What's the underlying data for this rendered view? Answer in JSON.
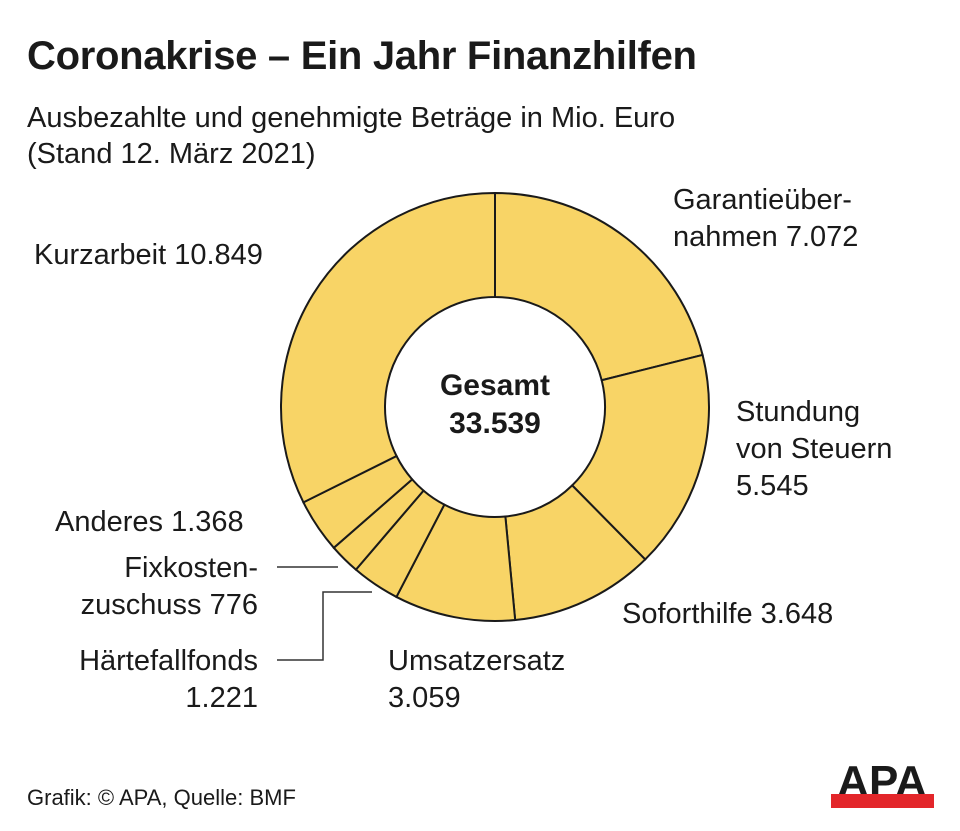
{
  "title": "Coronakrise – Ein Jahr Finanzhilfen",
  "subtitle_line1": "Ausbezahlte und genehmigte Beträge in Mio. Euro",
  "subtitle_line2": "(Stand 12. März 2021)",
  "footer": "Grafik: © APA, Quelle: BMF",
  "logo_text": "APA",
  "colors": {
    "slice": "#F8D466",
    "outline": "#1a1a1a",
    "logo_red": "#E3262A"
  },
  "chart_data": {
    "type": "pie",
    "variant": "donut",
    "unit": "Mio. Euro",
    "center_label": "Gesamt",
    "center_value": "33.539",
    "slices": [
      {
        "label_lines": [
          "Garantieüber-",
          "nahmen 7.072"
        ],
        "value": 7072
      },
      {
        "label_lines": [
          "Stundung",
          "von Steuern",
          "5.545"
        ],
        "value": 5545
      },
      {
        "label_lines": [
          "Soforthilfe 3.648"
        ],
        "value": 3648
      },
      {
        "label_lines": [
          "Umsatzersatz",
          "3.059"
        ],
        "value": 3059
      },
      {
        "label_lines": [
          "Härtefallfonds",
          "1.221"
        ],
        "value": 1221
      },
      {
        "label_lines": [
          "Fixkosten-",
          "zuschuss 776"
        ],
        "value": 776
      },
      {
        "label_lines": [
          "Anderes 1.368"
        ],
        "value": 1368
      },
      {
        "label_lines": [
          "Kurzarbeit 10.849"
        ],
        "value": 10849
      }
    ]
  }
}
